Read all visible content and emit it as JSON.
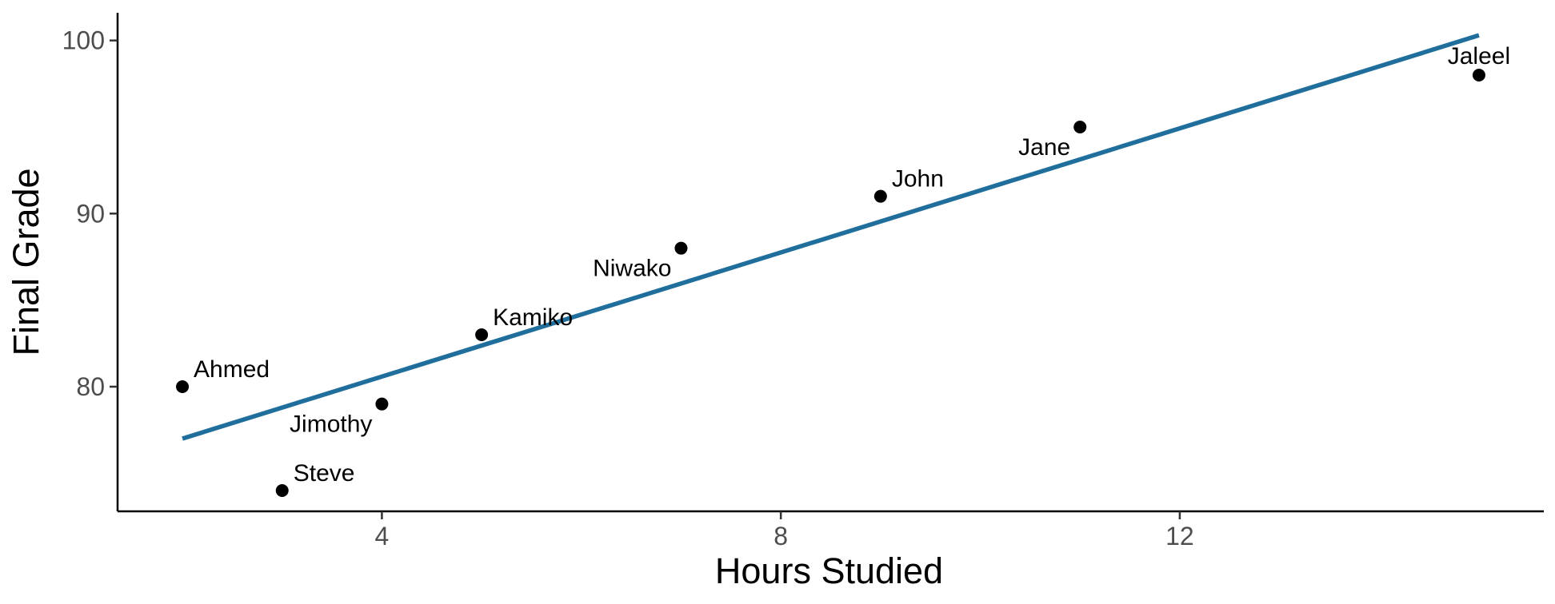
{
  "chart_data": {
    "type": "scatter",
    "title": "",
    "xlabel": "Hours Studied",
    "ylabel": "Final Grade",
    "xlim": [
      1.35,
      15.65
    ],
    "ylim": [
      72.8,
      101.6
    ],
    "x_ticks": [
      4,
      8,
      12
    ],
    "x_tick_labels": [
      "4",
      "8",
      "12"
    ],
    "y_ticks": [
      80,
      90,
      100
    ],
    "y_tick_labels": [
      "80",
      "90",
      "100"
    ],
    "grid": false,
    "legend": "none",
    "points": [
      {
        "name": "Ahmed",
        "x": 2,
        "y": 80,
        "label_pos": "above-right"
      },
      {
        "name": "Steve",
        "x": 3,
        "y": 74,
        "label_pos": "above-right"
      },
      {
        "name": "Jimothy",
        "x": 4,
        "y": 79,
        "label_pos": "below-left"
      },
      {
        "name": "Kamiko",
        "x": 5,
        "y": 83,
        "label_pos": "above-right"
      },
      {
        "name": "Niwako",
        "x": 7,
        "y": 88,
        "label_pos": "below-left"
      },
      {
        "name": "John",
        "x": 9,
        "y": 91,
        "label_pos": "above-right"
      },
      {
        "name": "Jane",
        "x": 11,
        "y": 95,
        "label_pos": "below-left"
      },
      {
        "name": "Jaleel",
        "x": 15,
        "y": 98,
        "label_pos": "above"
      }
    ],
    "fit_line": {
      "type": "linear",
      "x": [
        2,
        15
      ],
      "y": [
        77.0,
        100.3
      ],
      "color": "#1f6e9c"
    },
    "point_color": "#000000"
  }
}
